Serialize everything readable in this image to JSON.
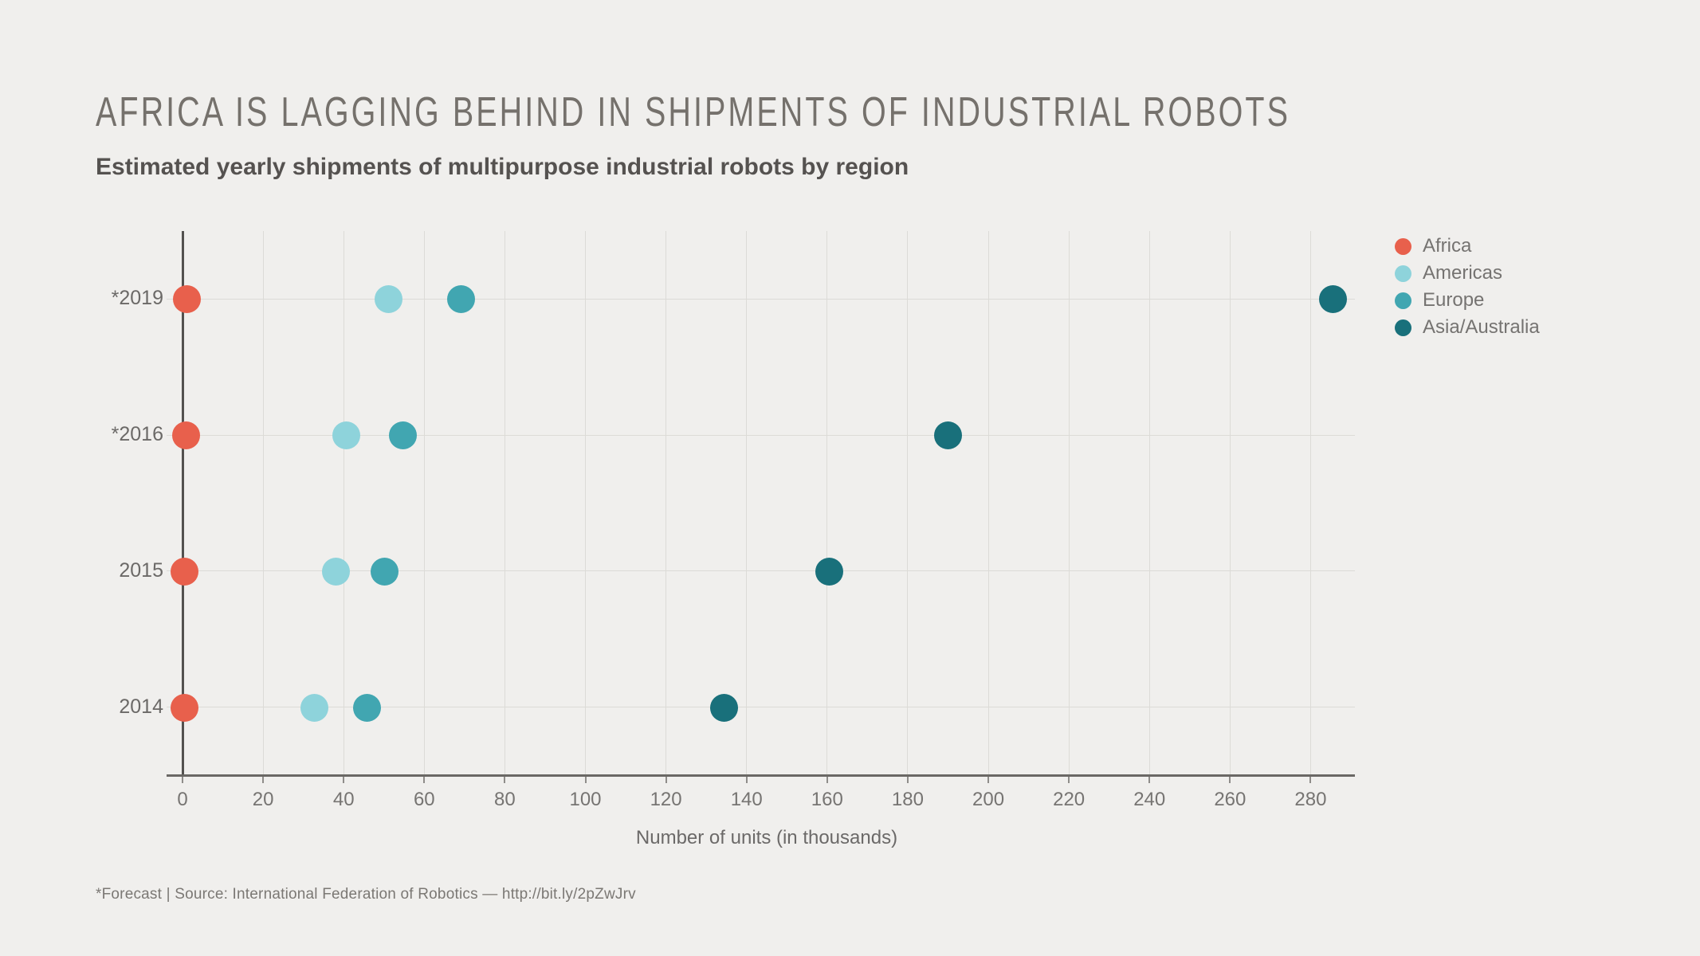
{
  "header": {
    "title": "Africa is lagging behind in shipments of industrial robots",
    "subtitle": "Estimated yearly shipments of multipurpose industrial robots by region"
  },
  "footer": {
    "note": "*Forecast | Source: International Federation of Robotics — http://bit.ly/2pZwJrv"
  },
  "colors": {
    "background": "#F0EFED",
    "africa": "#E8604C",
    "americas": "#8ED3DB",
    "europe": "#41A6B1",
    "asia_australia": "#19707B",
    "axis": "#53514F",
    "grid": "#DCDBD7"
  },
  "chart_data": {
    "type": "scatter",
    "variant": "horizontal-dot-plot",
    "title": "Africa is lagging behind in shipments of industrial robots",
    "subtitle": "Estimated yearly shipments of multipurpose industrial robots by region",
    "categories": [
      "*2019",
      "*2016",
      "2015",
      "2014"
    ],
    "series": [
      {
        "name": "Africa",
        "color": "#E8604C",
        "values": [
          1,
          0.8,
          0.4,
          0.4
        ]
      },
      {
        "name": "Americas",
        "color": "#8ED3DB",
        "values": [
          51,
          40.5,
          38,
          32.6
        ]
      },
      {
        "name": "Europe",
        "color": "#41A6B1",
        "values": [
          69,
          54.5,
          50,
          45.6
        ]
      },
      {
        "name": "Asia/Australia",
        "color": "#19707B",
        "values": [
          285.5,
          190,
          160.5,
          134.3
        ]
      }
    ],
    "xlabel": "Number of units (in thousands)",
    "ylabel": "",
    "xlim": [
      0,
      290
    ],
    "xticks": [
      0,
      20,
      40,
      60,
      80,
      100,
      120,
      140,
      160,
      180,
      200,
      220,
      240,
      260,
      280
    ],
    "grid": true,
    "legend_position": "right",
    "footnote": "*Forecast | Source: International Federation of Robotics — http://bit.ly/2pZwJrv"
  }
}
